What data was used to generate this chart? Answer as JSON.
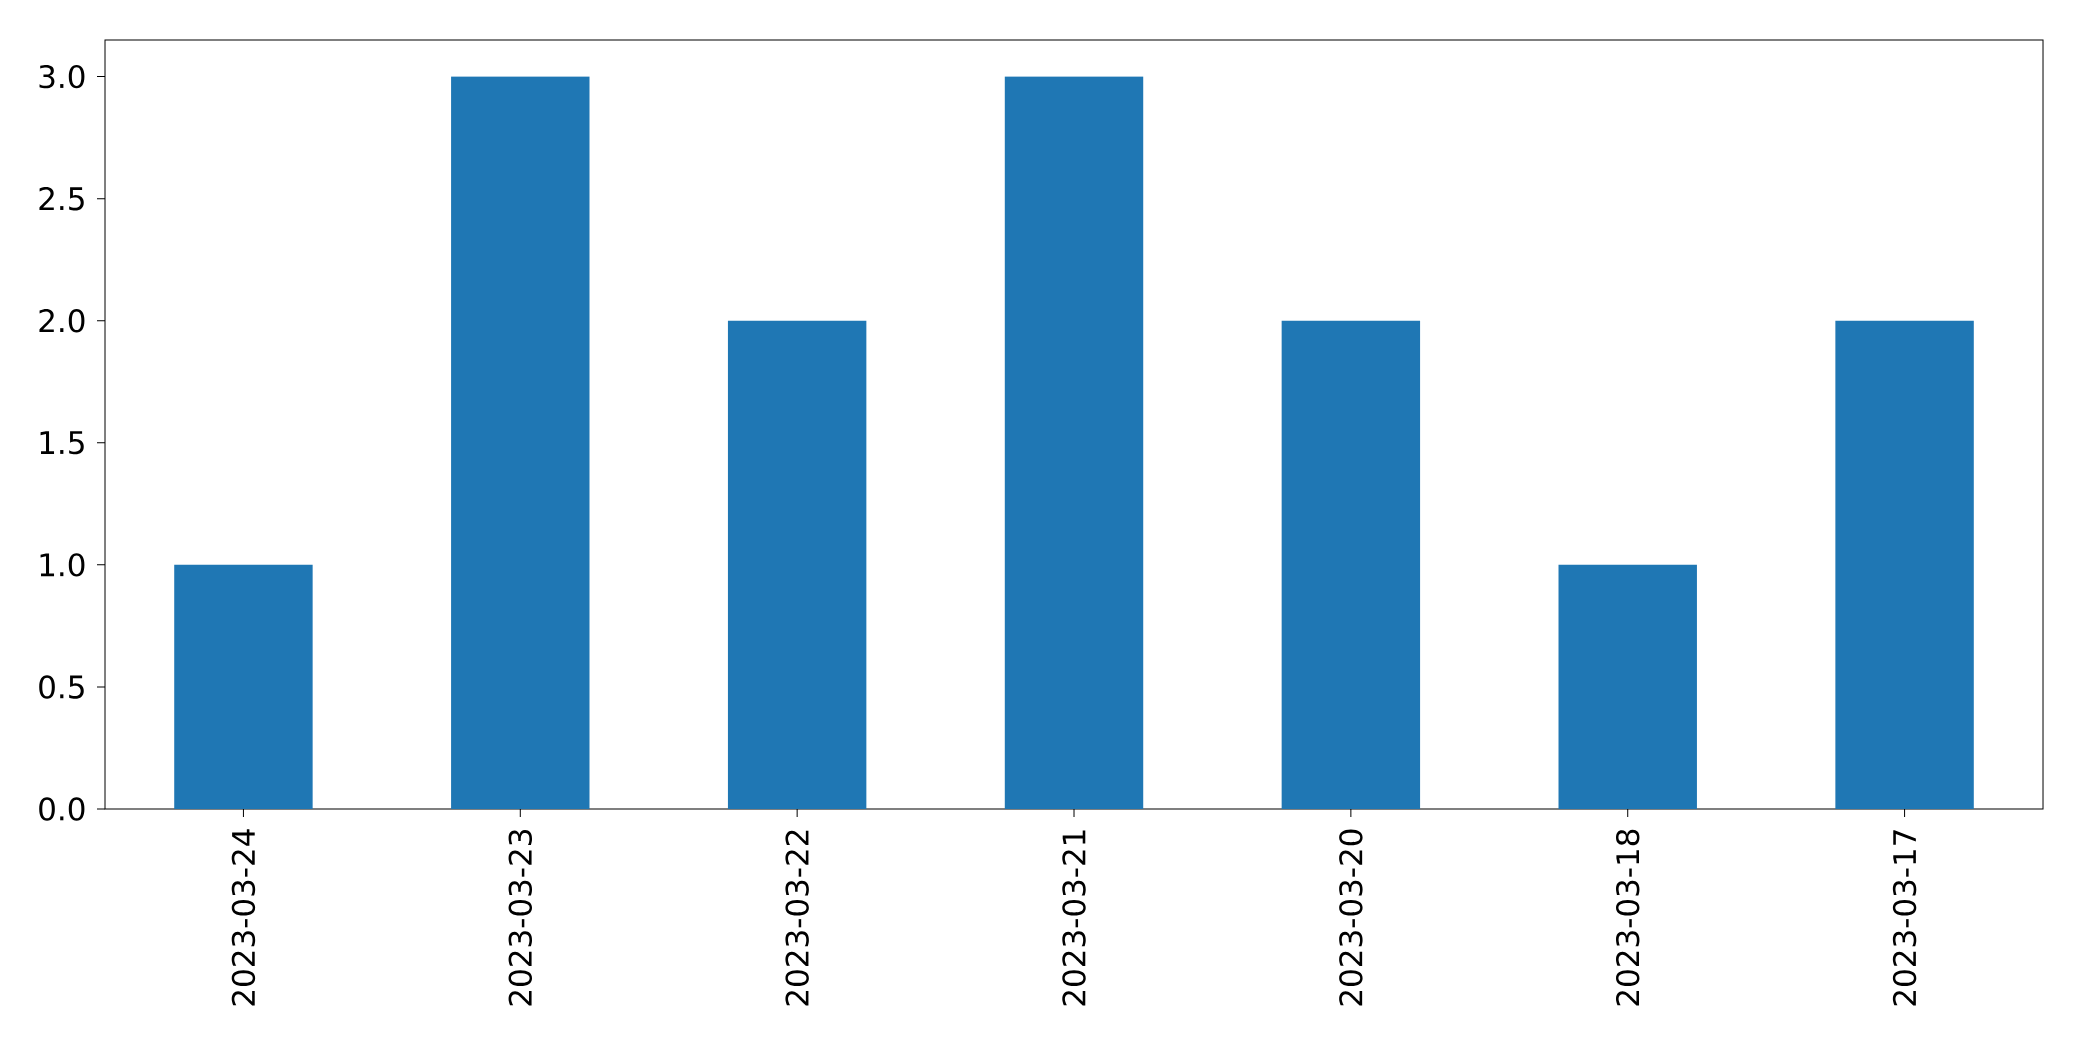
{
  "chart_data": {
    "type": "bar",
    "categories": [
      "2023-03-24",
      "2023-03-23",
      "2023-03-22",
      "2023-03-21",
      "2023-03-20",
      "2023-03-18",
      "2023-03-17"
    ],
    "values": [
      1,
      3,
      2,
      3,
      2,
      1,
      2
    ],
    "color": "#1f77b4",
    "ylim": [
      0,
      3.15
    ],
    "yticks": [
      {
        "value": 0,
        "label": "0.0"
      },
      {
        "value": 0.5,
        "label": "0.5"
      },
      {
        "value": 1,
        "label": "1.0"
      },
      {
        "value": 1.5,
        "label": "1.5"
      },
      {
        "value": 2,
        "label": "2.0"
      },
      {
        "value": 2.5,
        "label": "2.5"
      },
      {
        "value": 3,
        "label": "3.0"
      }
    ]
  }
}
